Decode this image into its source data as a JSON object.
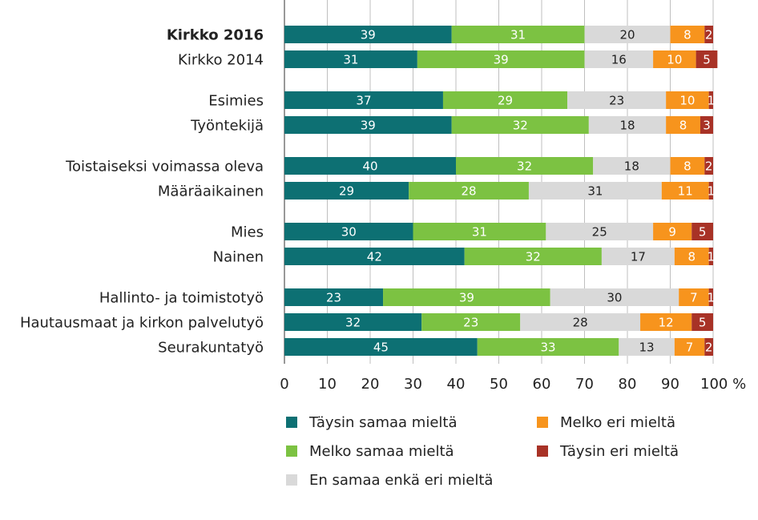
{
  "chart_data": {
    "type": "bar",
    "orientation": "horizontal-stacked-percent",
    "title": "",
    "xlabel": "",
    "ylabel": "",
    "xlim": [
      0,
      100
    ],
    "x_ticks": [
      "0",
      "10",
      "20",
      "30",
      "40",
      "50",
      "60",
      "70",
      "80",
      "90",
      "100 %"
    ],
    "grid": true,
    "legend_position": "bottom",
    "categories": [
      "Kirkko 2016",
      "Kirkko 2014",
      "Esimies",
      "Työntekijä",
      "Toistaiseksi voimassa oleva",
      "Määräaikainen",
      "Mies",
      "Nainen",
      "Hallinto- ja toimistotyö",
      "Hautausmaat ja kirkon palvelutyö",
      "Seurakuntatyö"
    ],
    "bold_categories": [
      "Kirkko 2016"
    ],
    "group_sizes": [
      2,
      2,
      2,
      2,
      3
    ],
    "series": [
      {
        "name": "Täysin samaa mieltä",
        "color": "#0d7073",
        "label_color": "#ffffff",
        "values": [
          39,
          31,
          37,
          39,
          40,
          29,
          30,
          42,
          23,
          32,
          45
        ]
      },
      {
        "name": "Melko samaa mieltä",
        "color": "#7cc242",
        "label_color": "#ffffff",
        "values": [
          31,
          39,
          29,
          32,
          32,
          28,
          31,
          32,
          39,
          23,
          33
        ]
      },
      {
        "name": "En samaa enkä eri mieltä",
        "color": "#d9d9d9",
        "label_color": "#222222",
        "values": [
          20,
          16,
          23,
          18,
          18,
          31,
          25,
          17,
          30,
          28,
          13
        ]
      },
      {
        "name": "Melko eri mieltä",
        "color": "#f7941d",
        "label_color": "#ffffff",
        "values": [
          8,
          10,
          10,
          8,
          8,
          11,
          9,
          8,
          7,
          12,
          7
        ]
      },
      {
        "name": "Täysin eri mieltä",
        "color": "#a83226",
        "label_color": "#ffffff",
        "values": [
          2,
          5,
          1,
          3,
          2,
          1,
          5,
          1,
          1,
          5,
          2
        ]
      }
    ],
    "legend_order": [
      0,
      3,
      1,
      4,
      2
    ]
  }
}
